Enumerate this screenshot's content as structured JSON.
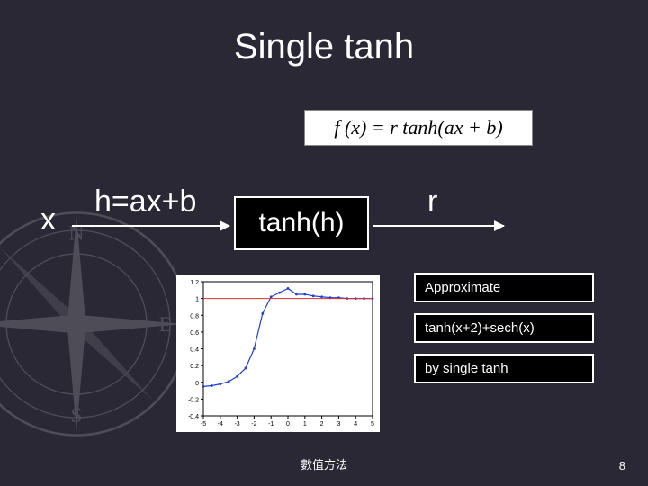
{
  "title": "Single tanh",
  "equation": "f (x) = r tanh(ax + b)",
  "flow": {
    "input": "x",
    "edge1": "h=ax+b",
    "node": "tanh(h)",
    "edge2": "r"
  },
  "chart": {
    "type": "line",
    "background": "#ffffff",
    "axis_color": "#000000",
    "xlim": [
      -5,
      5
    ],
    "xtick_step": 1,
    "ylim": [
      -0.4,
      1.2
    ],
    "ytick_step": 0.2,
    "tick_fontsize": 7,
    "series": [
      {
        "name": "tanh-approx",
        "color": "#2040d0",
        "linewidth": 1.2,
        "points_color": "#2040d0",
        "x": [
          -5,
          -4.5,
          -4,
          -3.5,
          -3,
          -2.5,
          -2,
          -1.5,
          -1,
          -0.5,
          0,
          0.5,
          1,
          1.5,
          2,
          2.5,
          3,
          3.5,
          4,
          4.5,
          5
        ],
        "y": [
          -0.05,
          -0.04,
          -0.02,
          0.01,
          0.07,
          0.17,
          0.4,
          0.82,
          1.02,
          1.07,
          1.12,
          1.05,
          1.05,
          1.03,
          1.02,
          1.01,
          1.01,
          1.0,
          1.0,
          1.0,
          1.0
        ]
      },
      {
        "name": "ref-line",
        "color": "#e03030",
        "linewidth": 1.0,
        "x": [
          -5,
          5
        ],
        "y": [
          1.0,
          1.0
        ]
      }
    ]
  },
  "notes": {
    "line1": "Approximate",
    "line2": "tanh(x+2)+sech(x)",
    "line3": "by single tanh"
  },
  "footer": "數值方法",
  "page": "8",
  "colors": {
    "bg": "#2a2835",
    "text": "#ffffff",
    "box_bg": "#000000",
    "box_border": "#ffffff",
    "eq_bg": "#ffffff"
  }
}
